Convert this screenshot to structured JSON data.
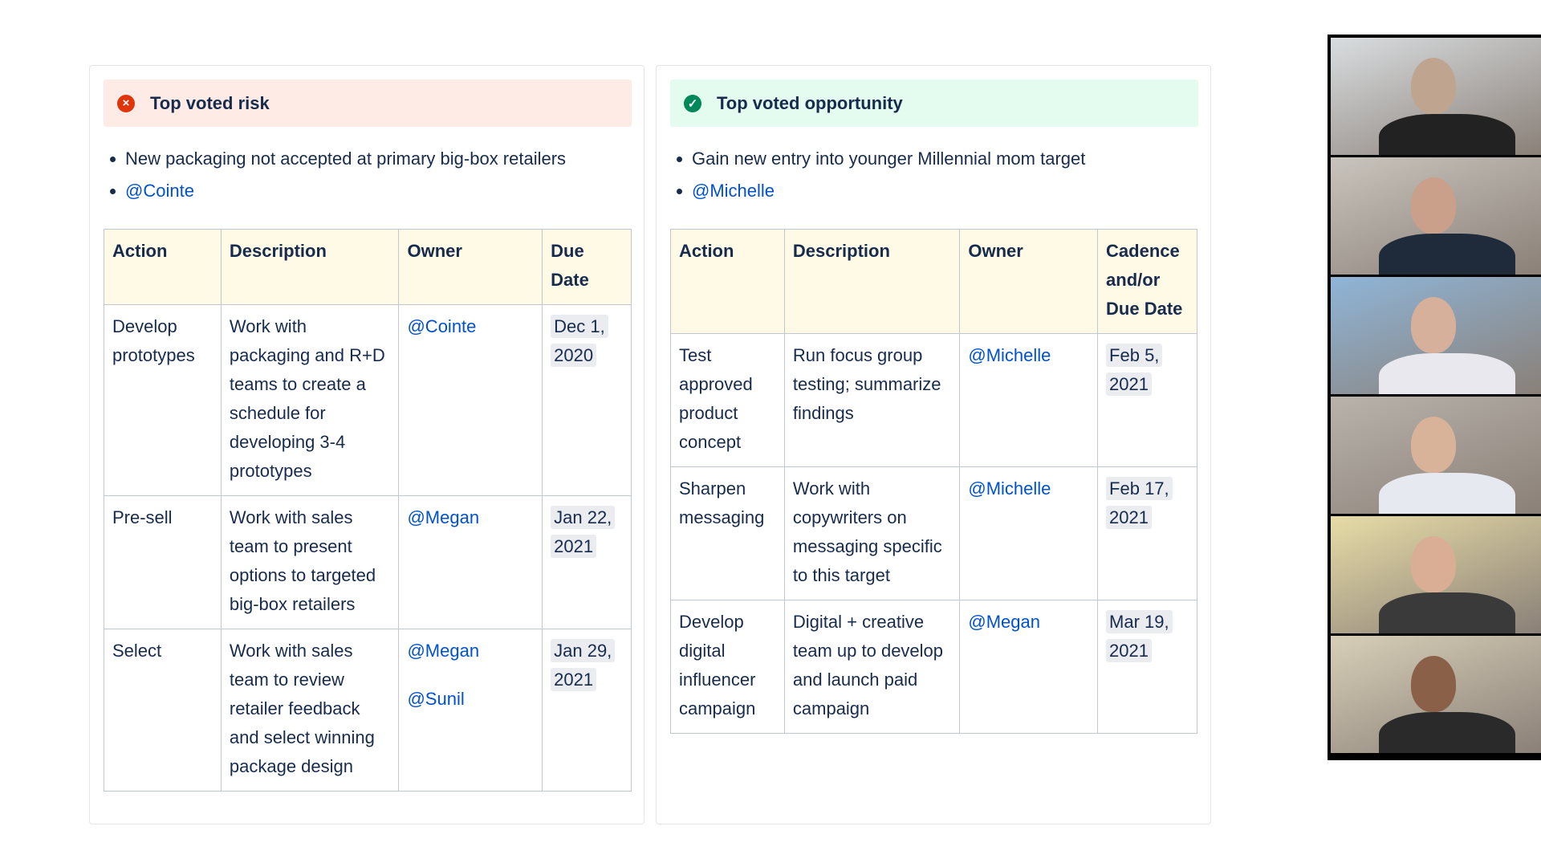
{
  "risk": {
    "title": "Top voted risk",
    "icon": "x-circle-icon",
    "color": "#de350b",
    "bullets": [
      "New packaging not accepted at primary big-box retailers"
    ],
    "mention": "@Cointe",
    "columns": [
      "Action",
      "Description",
      "Owner",
      "Due Date"
    ],
    "rows": [
      {
        "action": "Develop prototypes",
        "description": "Work with packaging and R+D teams to create a schedule for developing 3-4 prototypes",
        "owners": [
          "@Cointe"
        ],
        "date": "Dec 1, 2020"
      },
      {
        "action": "Pre-sell",
        "description": "Work with sales team to present options to targeted big-box retailers",
        "owners": [
          "@Megan"
        ],
        "date": "Jan 22, 2021"
      },
      {
        "action": "Select",
        "description": "Work with sales team to review retailer feedback and select winning package design",
        "owners": [
          "@Megan",
          "@Sunil"
        ],
        "date": "Jan 29, 2021"
      }
    ]
  },
  "opportunity": {
    "title": "Top voted opportunity",
    "icon": "check-circle-icon",
    "color": "#00875a",
    "bullets": [
      "Gain new entry into younger Millennial mom target"
    ],
    "mention": "@Michelle",
    "columns": [
      "Action",
      "Description",
      "Owner",
      "Cadence and/or Due Date"
    ],
    "rows": [
      {
        "action": "Test approved product concept",
        "description": "Run focus group testing; summarize findings",
        "owners": [
          "@Michelle"
        ],
        "date": "Feb 5, 2021"
      },
      {
        "action": "Sharpen messaging",
        "description": "Work with copywriters on messaging specific to this target",
        "owners": [
          "@Michelle"
        ],
        "date": "Feb 17, 2021"
      },
      {
        "action": "Develop digital influencer campaign",
        "description": "Digital + creative team up to develop and launch paid campaign",
        "owners": [
          "@Megan"
        ],
        "date": "Mar 19, 2021"
      }
    ]
  },
  "video_participants": 6
}
